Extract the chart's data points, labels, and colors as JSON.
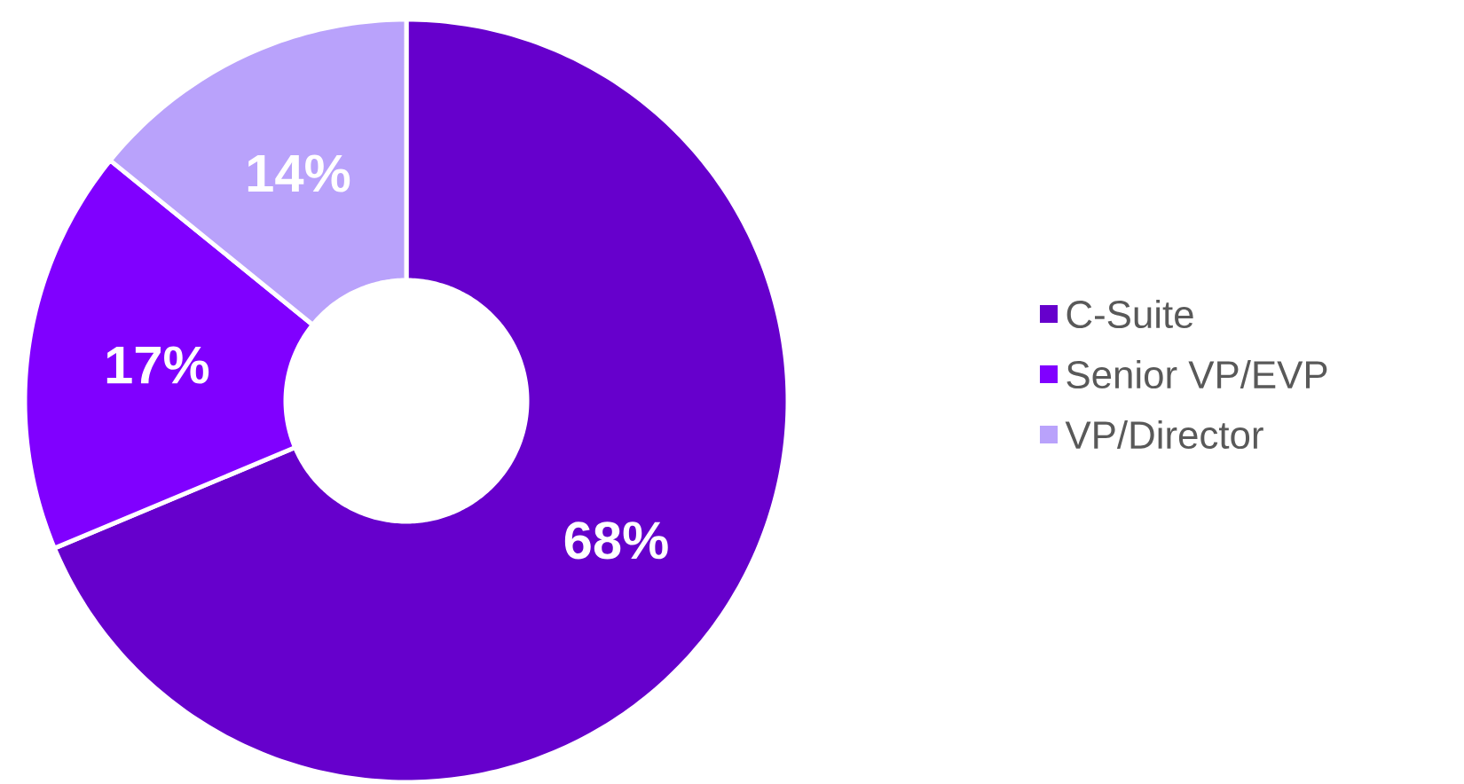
{
  "chart_data": {
    "type": "donut",
    "categories": [
      "C-Suite",
      "Senior VP/EVP",
      "VP/Director"
    ],
    "values": [
      68,
      17,
      14
    ],
    "colors": [
      "#6600cc",
      "#8000ff",
      "#b9a2fb"
    ],
    "value_labels": [
      "68%",
      "17%",
      "14%"
    ],
    "legend": "right"
  }
}
